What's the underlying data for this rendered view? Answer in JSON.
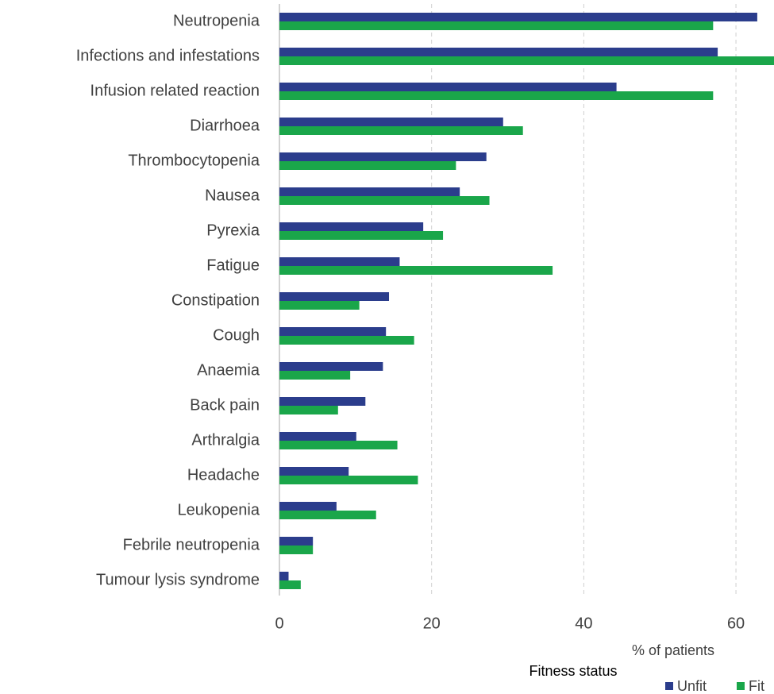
{
  "chart_data": {
    "type": "barh",
    "categories": [
      "Neutropenia",
      "Infections and infestations",
      "Infusion related reaction",
      "Diarrhoea",
      "Thrombocytopenia",
      "Nausea",
      "Pyrexia",
      "Fatigue",
      "Constipation",
      "Cough",
      "Anaemia",
      "Back pain",
      "Arthralgia",
      "Headache",
      "Leukopenia",
      "Febrile neutropenia",
      "Tumour lysis syndrome"
    ],
    "series": [
      {
        "name": "Unfit",
        "color": "#2b3d8c",
        "values": [
          62.8,
          57.6,
          44.3,
          29.4,
          27.2,
          23.7,
          18.9,
          15.8,
          14.4,
          14.0,
          13.6,
          11.3,
          10.1,
          9.1,
          7.5,
          4.4,
          1.2
        ]
      },
      {
        "name": "Fit",
        "color": "#1aa64a",
        "values": [
          57.0,
          65.0,
          57.0,
          32.0,
          23.2,
          27.6,
          21.5,
          35.9,
          10.5,
          17.7,
          9.3,
          7.7,
          15.5,
          18.2,
          12.7,
          4.4,
          2.8
        ]
      }
    ],
    "xlabel": "% of patients",
    "legend_title": "Fitness status",
    "xlim": [
      0,
      65
    ],
    "xticks": [
      0,
      20,
      40,
      60
    ],
    "grid": true
  }
}
